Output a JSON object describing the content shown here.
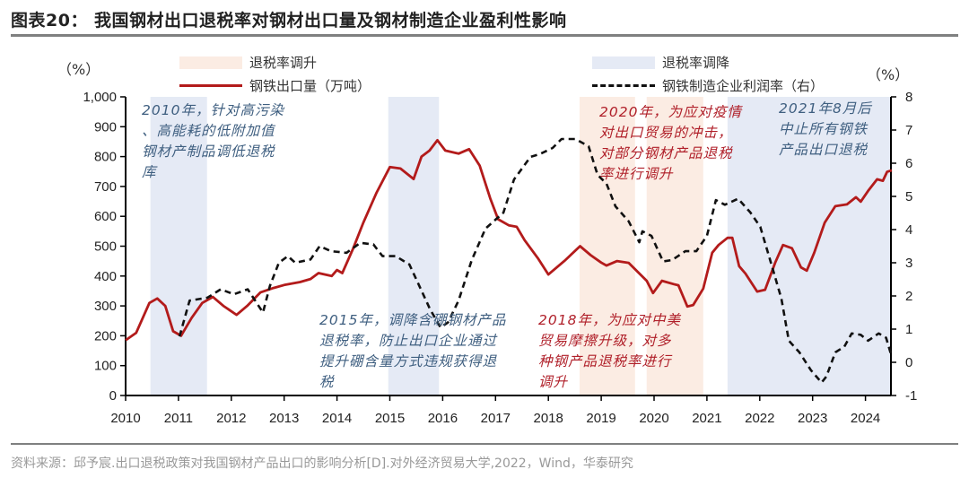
{
  "title": "图表20：  我国钢材出口退税率对钢材出口量及钢材制造企业盈利性影响",
  "source": "资料来源：邱予宸.出口退税政策对我国钢材产品出口的影响分析[D].对外经济贸易大学,2022，Wind，华泰研究",
  "chart_data": {
    "type": "line",
    "title": "",
    "left_unit": "（%）",
    "right_unit": "（%）",
    "x_ticks": [
      "2010",
      "2011",
      "2012",
      "2013",
      "2014",
      "2015",
      "2016",
      "2017",
      "2018",
      "2019",
      "2020",
      "2021",
      "2022",
      "2023",
      "2024"
    ],
    "xlim": [
      2010,
      2024.5
    ],
    "ylim_left": [
      0,
      1000
    ],
    "y_ticks_left": [
      "0",
      "100",
      "200",
      "300",
      "400",
      "500",
      "600",
      "700",
      "800",
      "900",
      "1,000"
    ],
    "ylim_right": [
      -1,
      8
    ],
    "y_ticks_right": [
      "-1",
      "0",
      "1",
      "2",
      "3",
      "4",
      "5",
      "6",
      "7",
      "8"
    ],
    "legend": {
      "raise": "退税率调升",
      "cut": "退税率调降",
      "exports": "钢铁出口量（万吨）",
      "profit": "钢铁制造企业利润率（右）"
    },
    "colors": {
      "exports": "#b31b1b",
      "profit": "#111111",
      "raise_band": "#fbece3",
      "cut_band": "#e5eaf5"
    },
    "shaded_periods": [
      {
        "kind": "cut",
        "start": 2010.47,
        "end": 2011.54
      },
      {
        "kind": "cut",
        "start": 2014.97,
        "end": 2015.93
      },
      {
        "kind": "raise",
        "start": 2018.59,
        "end": 2019.64
      },
      {
        "kind": "raise",
        "start": 2019.86,
        "end": 2020.93
      },
      {
        "kind": "cut",
        "start": 2021.39,
        "end": 2024.5
      }
    ],
    "series": [
      {
        "name": "钢铁出口量（万吨）",
        "axis": "left",
        "points": [
          [
            2010.0,
            185
          ],
          [
            2010.2,
            210
          ],
          [
            2010.45,
            310
          ],
          [
            2010.6,
            325
          ],
          [
            2010.75,
            300
          ],
          [
            2010.9,
            215
          ],
          [
            2011.05,
            200
          ],
          [
            2011.25,
            260
          ],
          [
            2011.45,
            310
          ],
          [
            2011.65,
            330
          ],
          [
            2011.85,
            300
          ],
          [
            2012.1,
            270
          ],
          [
            2012.3,
            300
          ],
          [
            2012.55,
            345
          ],
          [
            2012.8,
            360
          ],
          [
            2013.0,
            370
          ],
          [
            2013.3,
            380
          ],
          [
            2013.5,
            390
          ],
          [
            2013.65,
            410
          ],
          [
            2013.9,
            400
          ],
          [
            2014.0,
            420
          ],
          [
            2014.1,
            410
          ],
          [
            2014.3,
            490
          ],
          [
            2014.5,
            580
          ],
          [
            2014.75,
            680
          ],
          [
            2015.0,
            765
          ],
          [
            2015.2,
            760
          ],
          [
            2015.45,
            725
          ],
          [
            2015.6,
            800
          ],
          [
            2015.75,
            820
          ],
          [
            2015.9,
            855
          ],
          [
            2016.05,
            820
          ],
          [
            2016.3,
            810
          ],
          [
            2016.5,
            825
          ],
          [
            2016.7,
            770
          ],
          [
            2016.9,
            660
          ],
          [
            2017.05,
            590
          ],
          [
            2017.25,
            570
          ],
          [
            2017.4,
            565
          ],
          [
            2017.55,
            520
          ],
          [
            2017.8,
            460
          ],
          [
            2018.0,
            405
          ],
          [
            2018.3,
            450
          ],
          [
            2018.6,
            500
          ],
          [
            2018.8,
            470
          ],
          [
            2019.0,
            445
          ],
          [
            2019.1,
            435
          ],
          [
            2019.3,
            450
          ],
          [
            2019.52,
            444
          ],
          [
            2019.86,
            384
          ],
          [
            2019.98,
            343
          ],
          [
            2020.15,
            384
          ],
          [
            2020.37,
            373
          ],
          [
            2020.46,
            369
          ],
          [
            2020.63,
            298
          ],
          [
            2020.74,
            303
          ],
          [
            2020.93,
            358
          ],
          [
            2021.1,
            478
          ],
          [
            2021.22,
            504
          ],
          [
            2021.39,
            528
          ],
          [
            2021.48,
            528
          ],
          [
            2021.61,
            433
          ],
          [
            2021.73,
            408
          ],
          [
            2021.95,
            348
          ],
          [
            2022.1,
            354
          ],
          [
            2022.29,
            444
          ],
          [
            2022.44,
            504
          ],
          [
            2022.61,
            493
          ],
          [
            2022.78,
            429
          ],
          [
            2022.89,
            418
          ],
          [
            2023.03,
            478
          ],
          [
            2023.23,
            579
          ],
          [
            2023.43,
            634
          ],
          [
            2023.65,
            640
          ],
          [
            2023.82,
            664
          ],
          [
            2023.91,
            649
          ],
          [
            2024.05,
            685
          ],
          [
            2024.22,
            724
          ],
          [
            2024.33,
            719
          ],
          [
            2024.41,
            749
          ],
          [
            2024.5,
            754
          ]
        ]
      },
      {
        "name": "钢铁制造企业利润率（右）",
        "axis": "right",
        "points": [
          [
            2011.02,
            0.78
          ],
          [
            2011.21,
            1.86
          ],
          [
            2011.55,
            1.95
          ],
          [
            2011.8,
            2.2
          ],
          [
            2012.05,
            2.05
          ],
          [
            2012.31,
            2.2
          ],
          [
            2012.6,
            1.5
          ],
          [
            2012.73,
            2.3
          ],
          [
            2012.9,
            3.0
          ],
          [
            2013.07,
            3.2
          ],
          [
            2013.21,
            3.0
          ],
          [
            2013.5,
            3.1
          ],
          [
            2013.67,
            3.5
          ],
          [
            2013.89,
            3.35
          ],
          [
            2014.18,
            3.3
          ],
          [
            2014.44,
            3.6
          ],
          [
            2014.69,
            3.55
          ],
          [
            2014.86,
            3.2
          ],
          [
            2015.11,
            3.2
          ],
          [
            2015.37,
            2.95
          ],
          [
            2015.53,
            2.4
          ],
          [
            2015.76,
            1.6
          ],
          [
            2015.96,
            1.05
          ],
          [
            2016.1,
            1.2
          ],
          [
            2016.3,
            1.86
          ],
          [
            2016.55,
            3.08
          ],
          [
            2016.81,
            4.03
          ],
          [
            2017.15,
            4.51
          ],
          [
            2017.35,
            5.51
          ],
          [
            2017.66,
            6.19
          ],
          [
            2017.83,
            6.27
          ],
          [
            2018.08,
            6.46
          ],
          [
            2018.25,
            6.73
          ],
          [
            2018.51,
            6.73
          ],
          [
            2018.76,
            6.51
          ],
          [
            2018.93,
            5.65
          ],
          [
            2019.1,
            5.38
          ],
          [
            2019.27,
            4.7
          ],
          [
            2019.52,
            4.25
          ],
          [
            2019.72,
            3.62
          ],
          [
            2019.78,
            3.95
          ],
          [
            2019.95,
            3.81
          ],
          [
            2020.17,
            3.04
          ],
          [
            2020.34,
            3.08
          ],
          [
            2020.59,
            3.35
          ],
          [
            2020.8,
            3.35
          ],
          [
            2021.0,
            3.81
          ],
          [
            2021.17,
            4.89
          ],
          [
            2021.34,
            4.75
          ],
          [
            2021.59,
            4.93
          ],
          [
            2021.82,
            4.52
          ],
          [
            2022.01,
            4.08
          ],
          [
            2022.18,
            3.17
          ],
          [
            2022.41,
            1.92
          ],
          [
            2022.55,
            0.65
          ],
          [
            2022.75,
            0.3
          ],
          [
            2022.97,
            -0.24
          ],
          [
            2023.17,
            -0.61
          ],
          [
            2023.26,
            -0.43
          ],
          [
            2023.43,
            0.3
          ],
          [
            2023.6,
            0.47
          ],
          [
            2023.74,
            0.87
          ],
          [
            2023.91,
            0.83
          ],
          [
            2024.05,
            0.65
          ],
          [
            2024.25,
            0.87
          ],
          [
            2024.39,
            0.74
          ],
          [
            2024.49,
            0.2
          ]
        ]
      }
    ],
    "annotations": [
      {
        "color": "blue",
        "lines": [
          "2010年，针对高污染",
          "、高能耗的低附加值",
          "钢材产制品调低退税",
          "库"
        ]
      },
      {
        "color": "blue",
        "lines": [
          "2015年，调降含硼钢材产品",
          "退税率，防止出口企业通过",
          "提升硼含量方式违规获得退",
          "税"
        ]
      },
      {
        "color": "red",
        "lines": [
          "2018年，为应对中美",
          "贸易摩擦升级，对多",
          "种钢产品退税率进行",
          "调升"
        ]
      },
      {
        "color": "red",
        "lines": [
          "2020年，为应对疫情",
          "对出口贸易的冲击，",
          "对部分钢材产品退税",
          "率进行调升"
        ]
      },
      {
        "color": "blue",
        "lines": [
          "2021年8月后",
          "中止所有钢铁",
          "产品出口退税"
        ]
      }
    ]
  }
}
